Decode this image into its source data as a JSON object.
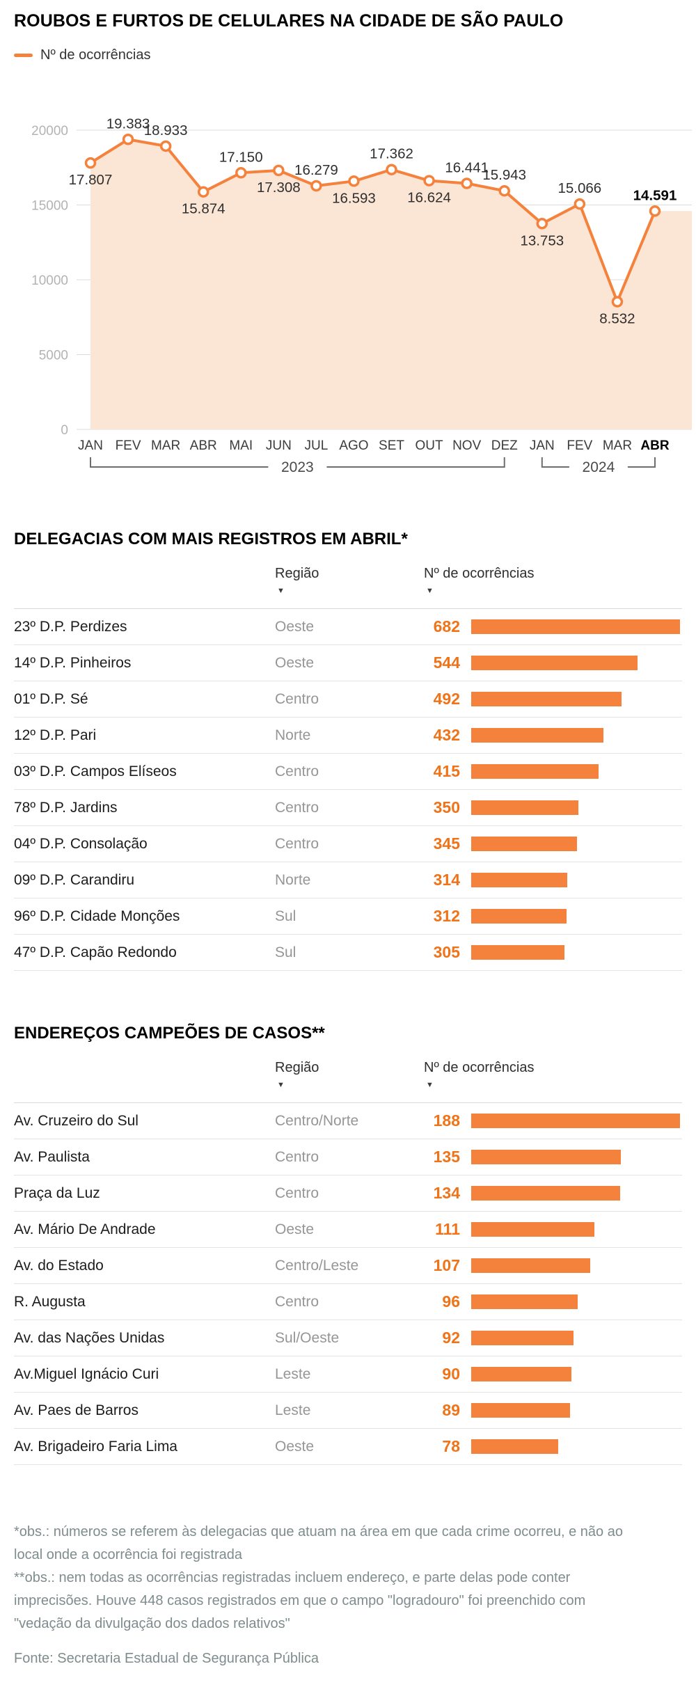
{
  "page": {
    "title": "ROUBOS E FURTOS DE CELULARES NA CIDADE DE SÃO PAULO",
    "legend_label": "Nº de ocorrências"
  },
  "colors": {
    "accent": "#F5823C",
    "accent_area": "#FBE5D4",
    "value_text": "#EF7318",
    "grid": "#DDDDDD",
    "axis_gray": "#B3B3B3"
  },
  "chart_data": {
    "type": "line",
    "title": "ROUBOS E FURTOS DE CELULARES NA CIDADE DE SÃO PAULO",
    "series_name": "Nº de ocorrências",
    "x": [
      "JAN",
      "FEV",
      "MAR",
      "ABR",
      "MAI",
      "JUN",
      "JUL",
      "AGO",
      "SET",
      "OUT",
      "NOV",
      "DEZ",
      "JAN",
      "FEV",
      "MAR",
      "ABR"
    ],
    "values": [
      17807,
      19383,
      18933,
      15874,
      17150,
      17308,
      16279,
      16593,
      17362,
      16624,
      16441,
      15943,
      13753,
      15066,
      8532,
      14591
    ],
    "labels": [
      "17.807",
      "19.383",
      "18.933",
      "15.874",
      "17.150",
      "17.308",
      "16.279",
      "16.593",
      "17.362",
      "16.624",
      "16.441",
      "15.943",
      "13.753",
      "15.066",
      "8.532",
      "14.591"
    ],
    "label_side": [
      "below",
      "above",
      "above",
      "below",
      "above",
      "below",
      "above",
      "below",
      "above",
      "below",
      "above",
      "above",
      "below",
      "above",
      "below",
      "above"
    ],
    "y_ticks": [
      0,
      5000,
      10000,
      15000,
      20000
    ],
    "y_tick_labels": [
      "0",
      "5000",
      "10000",
      "15000",
      "20000"
    ],
    "ylim": [
      0,
      20000
    ],
    "groups": [
      {
        "label": "2023",
        "from": 0,
        "to": 11
      },
      {
        "label": "2024",
        "from": 12,
        "to": 15
      }
    ],
    "bold_last": true,
    "area": true,
    "grid": true,
    "legend_position": "top-left"
  },
  "table1": {
    "title": "DELEGACIAS COM MAIS REGISTROS EM ABRIL*",
    "col_region": "Região",
    "col_value": "Nº de ocorrências",
    "sort_icon": "▼",
    "max_value": 682,
    "rows": [
      {
        "name": "23º D.P. Perdizes",
        "region": "Oeste",
        "value": 682
      },
      {
        "name": "14º D.P. Pinheiros",
        "region": "Oeste",
        "value": 544
      },
      {
        "name": "01º D.P. Sé",
        "region": "Centro",
        "value": 492
      },
      {
        "name": "12º D.P. Pari",
        "region": "Norte",
        "value": 432
      },
      {
        "name": "03º D.P. Campos Elíseos",
        "region": "Centro",
        "value": 415
      },
      {
        "name": "78º D.P. Jardins",
        "region": "Centro",
        "value": 350
      },
      {
        "name": "04º D.P. Consolação",
        "region": "Centro",
        "value": 345
      },
      {
        "name": "09º D.P. Carandiru",
        "region": "Norte",
        "value": 314
      },
      {
        "name": "96º D.P. Cidade Monções",
        "region": "Sul",
        "value": 312
      },
      {
        "name": "47º D.P. Capão Redondo",
        "region": "Sul",
        "value": 305
      }
    ]
  },
  "table2": {
    "title": "ENDEREÇOS CAMPEÕES DE CASOS**",
    "col_region": "Região",
    "col_value": "Nº de ocorrências",
    "sort_icon": "▼",
    "max_value": 188,
    "rows": [
      {
        "name": "Av. Cruzeiro do Sul",
        "region": "Centro/Norte",
        "value": 188
      },
      {
        "name": "Av. Paulista",
        "region": "Centro",
        "value": 135
      },
      {
        "name": "Praça da Luz",
        "region": "Centro",
        "value": 134
      },
      {
        "name": "Av. Mário De Andrade",
        "region": "Oeste",
        "value": 111
      },
      {
        "name": "Av. do Estado",
        "region": "Centro/Leste",
        "value": 107
      },
      {
        "name": "R. Augusta",
        "region": "Centro",
        "value": 96
      },
      {
        "name": "Av. das Nações Unidas",
        "region": "Sul/Oeste",
        "value": 92
      },
      {
        "name": "Av.Miguel Ignácio Curi",
        "region": "Leste",
        "value": 90
      },
      {
        "name": "Av. Paes de Barros",
        "region": "Leste",
        "value": 89
      },
      {
        "name": "Av. Brigadeiro Faria Lima",
        "region": "Oeste",
        "value": 78
      }
    ]
  },
  "footnotes": {
    "note1": "*obs.: números se referem às delegacias que atuam na área em que cada crime ocorreu, e não ao local onde a ocorrência foi registrada",
    "note2": "**obs.: nem todas as ocorrências registradas incluem endereço, e parte delas pode conter imprecisões. Houve 448 casos registrados em que o campo \"logradouro\" foi preenchido com \"vedação da divulgação dos dados relativos\"",
    "source": "Fonte: Secretaria Estadual de Segurança Pública"
  }
}
